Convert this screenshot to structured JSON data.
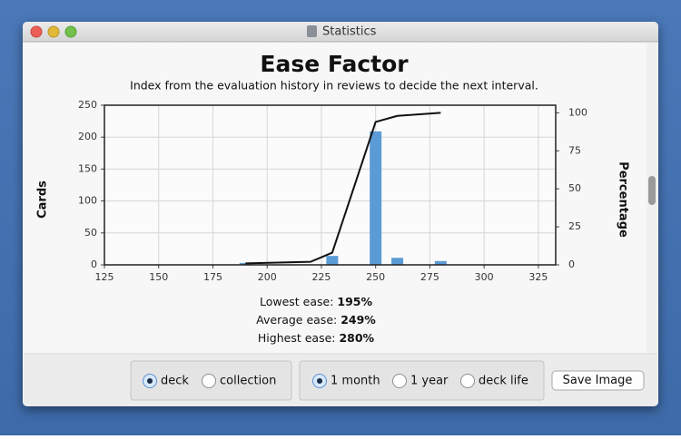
{
  "window": {
    "title": "Statistics"
  },
  "chart_data": {
    "type": "bar",
    "title": "Ease Factor",
    "subtitle": "Index from the evaluation history in reviews to decide the next interval.",
    "y_label": "Cards",
    "y2_label": "Percentage",
    "xlim": [
      125,
      333
    ],
    "xticks": [
      125,
      150,
      175,
      200,
      225,
      250,
      275,
      300,
      325
    ],
    "ylim": [
      0,
      250
    ],
    "yticks": [
      0,
      50,
      100,
      150,
      200,
      250
    ],
    "y2lim": [
      0,
      105
    ],
    "y2ticks": [
      0,
      25,
      50,
      75,
      100
    ],
    "grid": true,
    "series": [
      {
        "type": "bar",
        "color": "#5b9bd5",
        "x": [
          190,
          230,
          250,
          260,
          280
        ],
        "values": [
          3,
          14,
          209,
          11,
          6
        ]
      },
      {
        "type": "line",
        "axis": "y2",
        "color": "#111111",
        "x": [
          190,
          220,
          230,
          250,
          260,
          280
        ],
        "values": [
          1,
          2,
          8,
          94,
          98,
          100
        ]
      }
    ]
  },
  "stats": [
    {
      "label": "Lowest ease:",
      "value": "195%"
    },
    {
      "label": "Average ease:",
      "value": "249%"
    },
    {
      "label": "Highest ease:",
      "value": "280%"
    }
  ],
  "controls": {
    "scope": {
      "options": [
        "deck",
        "collection"
      ],
      "selected": 0
    },
    "period": {
      "options": [
        "1 month",
        "1 year",
        "deck life"
      ],
      "selected": 0
    },
    "button": "Save Image"
  }
}
